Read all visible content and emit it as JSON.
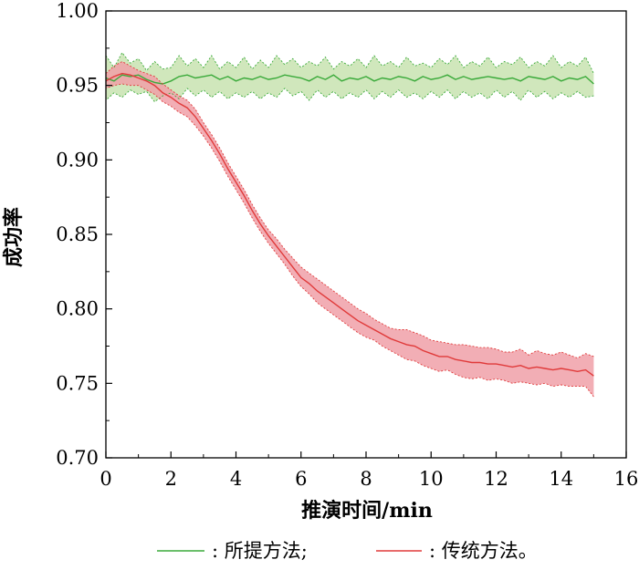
{
  "chart_data": {
    "type": "line",
    "title": "",
    "xlabel": "推演时间/min",
    "ylabel": "成功率",
    "xlim": [
      0,
      16
    ],
    "ylim": [
      0.7,
      1.0
    ],
    "x_ticks": [
      "0",
      "2",
      "4",
      "6",
      "8",
      "10",
      "12",
      "14",
      "16"
    ],
    "y_ticks": [
      "0.70",
      "0.75",
      "0.80",
      "0.85",
      "0.90",
      "0.95",
      "1.00"
    ],
    "grid": false,
    "legend_position": "bottom",
    "x": [
      0,
      0.25,
      0.5,
      0.75,
      1.0,
      1.25,
      1.5,
      1.75,
      2.0,
      2.25,
      2.5,
      2.75,
      3.0,
      3.25,
      3.5,
      3.75,
      4.0,
      4.25,
      4.5,
      4.75,
      5.0,
      5.25,
      5.5,
      5.75,
      6.0,
      6.25,
      6.5,
      6.75,
      7.0,
      7.25,
      7.5,
      7.75,
      8.0,
      8.25,
      8.5,
      8.75,
      9.0,
      9.25,
      9.5,
      9.75,
      10.0,
      10.25,
      10.5,
      10.75,
      11.0,
      11.25,
      11.5,
      11.75,
      12.0,
      12.25,
      12.5,
      12.75,
      13.0,
      13.25,
      13.5,
      13.75,
      14.0,
      14.25,
      14.5,
      14.75,
      15.0
    ],
    "series": [
      {
        "name": "所提方法;",
        "color": "#3aaa3a",
        "fill": "#c8e3b0",
        "values": [
          0.955,
          0.953,
          0.957,
          0.956,
          0.957,
          0.954,
          0.952,
          0.951,
          0.953,
          0.956,
          0.957,
          0.955,
          0.956,
          0.957,
          0.954,
          0.956,
          0.953,
          0.955,
          0.954,
          0.956,
          0.954,
          0.955,
          0.957,
          0.956,
          0.955,
          0.953,
          0.956,
          0.954,
          0.957,
          0.953,
          0.955,
          0.954,
          0.956,
          0.953,
          0.955,
          0.954,
          0.956,
          0.955,
          0.953,
          0.956,
          0.954,
          0.955,
          0.957,
          0.954,
          0.956,
          0.954,
          0.955,
          0.956,
          0.955,
          0.954,
          0.955,
          0.953,
          0.956,
          0.955,
          0.954,
          0.956,
          0.953,
          0.955,
          0.954,
          0.956,
          0.951
        ],
        "upper": [
          0.97,
          0.962,
          0.972,
          0.965,
          0.968,
          0.96,
          0.966,
          0.961,
          0.962,
          0.97,
          0.963,
          0.968,
          0.962,
          0.97,
          0.961,
          0.966,
          0.962,
          0.969,
          0.961,
          0.967,
          0.962,
          0.97,
          0.964,
          0.968,
          0.962,
          0.966,
          0.963,
          0.969,
          0.961,
          0.966,
          0.963,
          0.968,
          0.962,
          0.97,
          0.963,
          0.966,
          0.962,
          0.969,
          0.963,
          0.965,
          0.962,
          0.968,
          0.964,
          0.97,
          0.962,
          0.966,
          0.963,
          0.969,
          0.962,
          0.966,
          0.964,
          0.969,
          0.962,
          0.966,
          0.963,
          0.97,
          0.962,
          0.966,
          0.963,
          0.969,
          0.958
        ],
        "lower": [
          0.94,
          0.945,
          0.942,
          0.947,
          0.944,
          0.946,
          0.939,
          0.943,
          0.945,
          0.941,
          0.948,
          0.943,
          0.947,
          0.942,
          0.946,
          0.941,
          0.945,
          0.942,
          0.946,
          0.941,
          0.945,
          0.942,
          0.948,
          0.943,
          0.946,
          0.94,
          0.947,
          0.942,
          0.946,
          0.941,
          0.945,
          0.942,
          0.947,
          0.941,
          0.946,
          0.942,
          0.947,
          0.942,
          0.945,
          0.941,
          0.946,
          0.942,
          0.947,
          0.941,
          0.946,
          0.942,
          0.945,
          0.941,
          0.947,
          0.942,
          0.946,
          0.94,
          0.947,
          0.942,
          0.946,
          0.941,
          0.945,
          0.942,
          0.946,
          0.942,
          0.943
        ]
      },
      {
        "name": "传统方法。",
        "color": "#e03a3a",
        "fill": "#f0a0a8",
        "values": [
          0.953,
          0.956,
          0.958,
          0.957,
          0.955,
          0.953,
          0.95,
          0.945,
          0.942,
          0.938,
          0.935,
          0.929,
          0.921,
          0.913,
          0.904,
          0.894,
          0.885,
          0.876,
          0.866,
          0.857,
          0.849,
          0.842,
          0.835,
          0.828,
          0.821,
          0.817,
          0.812,
          0.808,
          0.804,
          0.8,
          0.796,
          0.792,
          0.789,
          0.786,
          0.783,
          0.78,
          0.778,
          0.776,
          0.775,
          0.772,
          0.77,
          0.768,
          0.768,
          0.766,
          0.765,
          0.764,
          0.764,
          0.763,
          0.763,
          0.762,
          0.761,
          0.762,
          0.76,
          0.761,
          0.76,
          0.759,
          0.76,
          0.759,
          0.758,
          0.759,
          0.755
        ],
        "upper": [
          0.958,
          0.963,
          0.966,
          0.963,
          0.96,
          0.958,
          0.956,
          0.951,
          0.947,
          0.943,
          0.94,
          0.934,
          0.925,
          0.917,
          0.908,
          0.898,
          0.889,
          0.88,
          0.87,
          0.861,
          0.853,
          0.847,
          0.84,
          0.834,
          0.828,
          0.824,
          0.82,
          0.816,
          0.812,
          0.808,
          0.804,
          0.8,
          0.797,
          0.793,
          0.79,
          0.787,
          0.786,
          0.786,
          0.784,
          0.782,
          0.779,
          0.778,
          0.777,
          0.776,
          0.776,
          0.775,
          0.774,
          0.774,
          0.773,
          0.771,
          0.771,
          0.773,
          0.769,
          0.772,
          0.77,
          0.769,
          0.771,
          0.769,
          0.767,
          0.77,
          0.768
        ],
        "lower": [
          0.948,
          0.95,
          0.951,
          0.95,
          0.95,
          0.947,
          0.944,
          0.939,
          0.936,
          0.932,
          0.929,
          0.923,
          0.916,
          0.908,
          0.899,
          0.889,
          0.88,
          0.871,
          0.861,
          0.852,
          0.844,
          0.837,
          0.83,
          0.822,
          0.815,
          0.81,
          0.804,
          0.8,
          0.796,
          0.792,
          0.788,
          0.784,
          0.781,
          0.779,
          0.775,
          0.772,
          0.769,
          0.766,
          0.765,
          0.762,
          0.76,
          0.758,
          0.759,
          0.756,
          0.754,
          0.753,
          0.754,
          0.752,
          0.753,
          0.752,
          0.75,
          0.751,
          0.75,
          0.749,
          0.75,
          0.748,
          0.749,
          0.748,
          0.748,
          0.748,
          0.741
        ]
      }
    ]
  }
}
